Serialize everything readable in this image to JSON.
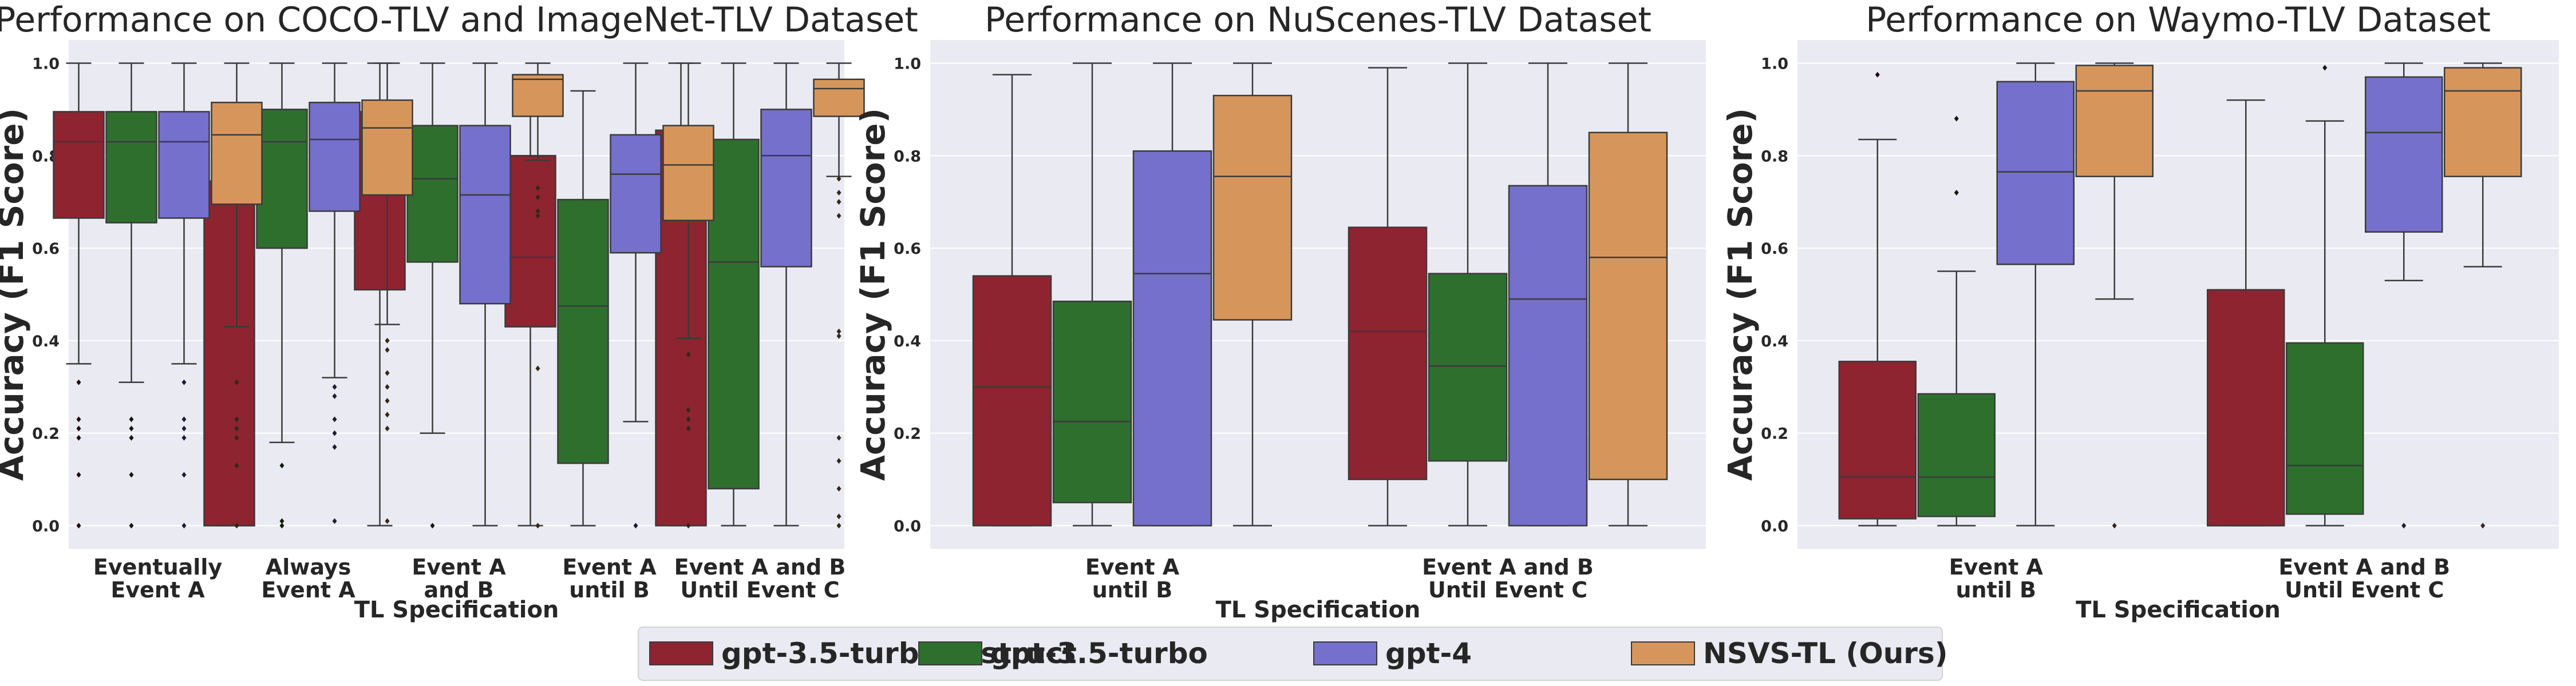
{
  "chart_data": [
    {
      "type": "box",
      "title": "Performance on COCO-TLV and ImageNet-TLV Dataset",
      "ylabel": "Accuracy (F1 Score)",
      "xlabel": "TL Specification",
      "ylim": [
        -0.05,
        1.05
      ],
      "yticks": [
        "0.0",
        "0.2",
        "0.4",
        "0.6",
        "0.8",
        "1.0"
      ],
      "categories": [
        "Eventually\nEvent A",
        "Always\nEvent A",
        "Event A\nand B",
        "Event A\nuntil B",
        "Event A and B\nUntil Event C"
      ],
      "series": [
        {
          "name": "gpt-3.5-turbo-instruct",
          "boxes": [
            {
              "whislo": 0.35,
              "q1": 0.665,
              "med": 0.83,
              "q3": 0.895,
              "whishi": 1.0,
              "fliers": [
                0.31,
                0.23,
                0.21,
                0.19,
                0.11,
                0.0
              ]
            },
            {
              "whislo": 0.0,
              "q1": 0.0,
              "med": 0.0,
              "q3": 0.745,
              "whishi": 0.745,
              "fliers": []
            },
            {
              "whislo": 0.0,
              "q1": 0.51,
              "med": 0.785,
              "q3": 0.895,
              "whishi": 1.0,
              "fliers": []
            },
            {
              "whislo": 0.0,
              "q1": 0.43,
              "med": 0.58,
              "q3": 0.8,
              "whishi": 0.975,
              "fliers": []
            },
            {
              "whislo": 0.0,
              "q1": 0.0,
              "med": 0.67,
              "q3": 0.855,
              "whishi": 1.0,
              "fliers": []
            }
          ]
        },
        {
          "name": "gpt-3.5-turbo",
          "boxes": [
            {
              "whislo": 0.31,
              "q1": 0.655,
              "med": 0.83,
              "q3": 0.895,
              "whishi": 1.0,
              "fliers": [
                0.23,
                0.21,
                0.19,
                0.11,
                0.0
              ]
            },
            {
              "whislo": 0.18,
              "q1": 0.6,
              "med": 0.83,
              "q3": 0.9,
              "whishi": 1.0,
              "fliers": [
                0.13,
                0.01,
                0.0
              ]
            },
            {
              "whislo": 0.2,
              "q1": 0.57,
              "med": 0.75,
              "q3": 0.865,
              "whishi": 1.0,
              "fliers": [
                0.0
              ]
            },
            {
              "whislo": 0.0,
              "q1": 0.135,
              "med": 0.475,
              "q3": 0.705,
              "whishi": 0.94,
              "fliers": []
            },
            {
              "whislo": 0.0,
              "q1": 0.08,
              "med": 0.57,
              "q3": 0.835,
              "whishi": 1.0,
              "fliers": []
            }
          ]
        },
        {
          "name": "gpt-4",
          "boxes": [
            {
              "whislo": 0.35,
              "q1": 0.665,
              "med": 0.83,
              "q3": 0.895,
              "whishi": 1.0,
              "fliers": [
                0.31,
                0.23,
                0.21,
                0.19,
                0.11,
                0.0
              ]
            },
            {
              "whislo": 0.32,
              "q1": 0.68,
              "med": 0.835,
              "q3": 0.915,
              "whishi": 1.0,
              "fliers": [
                0.3,
                0.28,
                0.23,
                0.2,
                0.17,
                0.01
              ]
            },
            {
              "whislo": 0.0,
              "q1": 0.48,
              "med": 0.715,
              "q3": 0.865,
              "whishi": 1.0,
              "fliers": []
            },
            {
              "whislo": 0.225,
              "q1": 0.59,
              "med": 0.76,
              "q3": 0.845,
              "whishi": 1.0,
              "fliers": [
                0.0
              ]
            },
            {
              "whislo": 0.0,
              "q1": 0.56,
              "med": 0.8,
              "q3": 0.9,
              "whishi": 1.0,
              "fliers": []
            }
          ]
        },
        {
          "name": "NSVS-TL (Ours)",
          "boxes": [
            {
              "whislo": 0.43,
              "q1": 0.695,
              "med": 0.845,
              "q3": 0.915,
              "whishi": 1.0,
              "fliers": [
                0.31,
                0.23,
                0.21,
                0.19,
                0.13,
                0.0
              ]
            },
            {
              "whislo": 0.435,
              "q1": 0.715,
              "med": 0.86,
              "q3": 0.92,
              "whishi": 1.0,
              "fliers": [
                0.4,
                0.38,
                0.33,
                0.3,
                0.27,
                0.24,
                0.21,
                0.01
              ]
            },
            {
              "whislo": 0.79,
              "q1": 0.885,
              "med": 0.965,
              "q3": 0.975,
              "whishi": 1.0,
              "fliers": [
                0.73,
                0.71,
                0.68,
                0.67,
                0.34,
                0.0
              ]
            },
            {
              "whislo": 0.405,
              "q1": 0.66,
              "med": 0.78,
              "q3": 0.865,
              "whishi": 1.0,
              "fliers": [
                0.37,
                0.25,
                0.23,
                0.21,
                0.0
              ]
            },
            {
              "whislo": 0.755,
              "q1": 0.885,
              "med": 0.945,
              "q3": 0.965,
              "whishi": 1.0,
              "fliers": [
                0.75,
                0.72,
                0.7,
                0.67,
                0.42,
                0.41,
                0.19,
                0.14,
                0.08,
                0.02,
                0.0
              ]
            }
          ]
        }
      ]
    },
    {
      "type": "box",
      "title": "Performance on NuScenes-TLV Dataset",
      "ylabel": "Accuracy (F1 Score)",
      "xlabel": "TL Specification",
      "ylim": [
        -0.05,
        1.05
      ],
      "yticks": [
        "0.0",
        "0.2",
        "0.4",
        "0.6",
        "0.8",
        "1.0"
      ],
      "categories": [
        "Event A\nuntil B",
        "Event A and B\nUntil Event C"
      ],
      "series": [
        {
          "name": "gpt-3.5-turbo-instruct",
          "boxes": [
            {
              "whislo": 0.0,
              "q1": 0.0,
              "med": 0.3,
              "q3": 0.54,
              "whishi": 0.975,
              "fliers": []
            },
            {
              "whislo": 0.0,
              "q1": 0.1,
              "med": 0.42,
              "q3": 0.645,
              "whishi": 0.99,
              "fliers": []
            }
          ]
        },
        {
          "name": "gpt-3.5-turbo",
          "boxes": [
            {
              "whislo": 0.0,
              "q1": 0.05,
              "med": 0.225,
              "q3": 0.485,
              "whishi": 1.0,
              "fliers": []
            },
            {
              "whislo": 0.0,
              "q1": 0.14,
              "med": 0.345,
              "q3": 0.545,
              "whishi": 1.0,
              "fliers": []
            }
          ]
        },
        {
          "name": "gpt-4",
          "boxes": [
            {
              "whislo": 0.0,
              "q1": 0.0,
              "med": 0.545,
              "q3": 0.81,
              "whishi": 1.0,
              "fliers": []
            },
            {
              "whislo": 0.0,
              "q1": 0.0,
              "med": 0.49,
              "q3": 0.735,
              "whishi": 1.0,
              "fliers": []
            }
          ]
        },
        {
          "name": "NSVS-TL (Ours)",
          "boxes": [
            {
              "whislo": 0.0,
              "q1": 0.445,
              "med": 0.755,
              "q3": 0.93,
              "whishi": 1.0,
              "fliers": []
            },
            {
              "whislo": 0.0,
              "q1": 0.1,
              "med": 0.58,
              "q3": 0.85,
              "whishi": 1.0,
              "fliers": []
            }
          ]
        }
      ]
    },
    {
      "type": "box",
      "title": "Performance on Waymo-TLV Dataset",
      "ylabel": "Accuracy (F1 Score)",
      "xlabel": "TL Specification",
      "ylim": [
        -0.05,
        1.05
      ],
      "yticks": [
        "0.0",
        "0.2",
        "0.4",
        "0.6",
        "0.8",
        "1.0"
      ],
      "categories": [
        "Event A\nuntil B",
        "Event A and B\nUntil Event C"
      ],
      "series": [
        {
          "name": "gpt-3.5-turbo-instruct",
          "boxes": [
            {
              "whislo": 0.0,
              "q1": 0.015,
              "med": 0.105,
              "q3": 0.355,
              "whishi": 0.835,
              "fliers": [
                0.975
              ]
            },
            {
              "whislo": 0.0,
              "q1": 0.0,
              "med": 0.0,
              "q3": 0.51,
              "whishi": 0.92,
              "fliers": []
            }
          ]
        },
        {
          "name": "gpt-3.5-turbo",
          "boxes": [
            {
              "whislo": 0.0,
              "q1": 0.02,
              "med": 0.105,
              "q3": 0.285,
              "whishi": 0.55,
              "fliers": [
                0.88,
                0.72
              ]
            },
            {
              "whislo": 0.0,
              "q1": 0.025,
              "med": 0.13,
              "q3": 0.395,
              "whishi": 0.875,
              "fliers": [
                0.99
              ]
            }
          ]
        },
        {
          "name": "gpt-4",
          "boxes": [
            {
              "whislo": 0.0,
              "q1": 0.565,
              "med": 0.765,
              "q3": 0.96,
              "whishi": 1.0,
              "fliers": []
            },
            {
              "whislo": 0.53,
              "q1": 0.635,
              "med": 0.85,
              "q3": 0.97,
              "whishi": 1.0,
              "fliers": [
                0.0
              ]
            }
          ]
        },
        {
          "name": "NSVS-TL (Ours)",
          "boxes": [
            {
              "whislo": 0.49,
              "q1": 0.755,
              "med": 0.94,
              "q3": 0.995,
              "whishi": 1.0,
              "fliers": [
                0.0
              ]
            },
            {
              "whislo": 0.56,
              "q1": 0.755,
              "med": 0.94,
              "q3": 0.99,
              "whishi": 1.0,
              "fliers": [
                0.0
              ]
            }
          ]
        }
      ]
    }
  ],
  "legend": {
    "placement": "bottom-center",
    "items": [
      {
        "label": "gpt-3.5-turbo-instruct",
        "color": "#8e2430"
      },
      {
        "label": "gpt-3.5-turbo",
        "color": "#2e6f2e"
      },
      {
        "label": "gpt-4",
        "color": "#7570cc"
      },
      {
        "label": "NSVS-TL (Ours)",
        "color": "#d6965b"
      }
    ]
  },
  "style": {
    "plot_background": "#eaeaf2",
    "grid": true,
    "grid_color": "#ffffff"
  }
}
